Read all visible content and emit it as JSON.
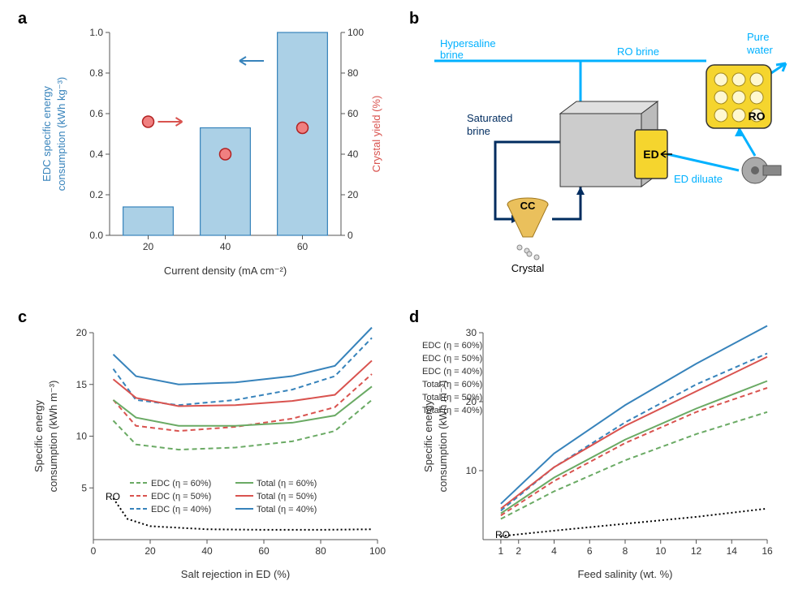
{
  "panel_labels": {
    "a": "a",
    "b": "b",
    "c": "c",
    "d": "d"
  },
  "panelA": {
    "type": "bar+scatter",
    "categories": [
      "20",
      "40",
      "60"
    ],
    "bars": [
      0.14,
      0.53,
      1.0
    ],
    "points": [
      56,
      40,
      53
    ],
    "xlabel": "Current density (mA cm⁻²)",
    "ylabel_left": "EDC specific energy consumption (kWh kg⁻³)",
    "ylabel_right": "Crystal yield (%)",
    "ylim_left": [
      0,
      1.0
    ],
    "ytick_left": [
      0,
      0.2,
      0.4,
      0.6,
      0.8,
      1.0
    ],
    "ylim_right": [
      0,
      100
    ],
    "ytick_right": [
      0,
      20,
      40,
      60,
      80,
      100
    ],
    "bar_color": "#abd0e6",
    "bar_stroke": "#3783bb",
    "point_fill": "#f08080",
    "point_stroke": "#b22222",
    "axis_color": "#555555",
    "left_label_color": "#3783bb",
    "right_label_color": "#d9534f",
    "arrow_left_color": "#3783bb",
    "arrow_right_color": "#d9534f",
    "label_fontsize": 13,
    "tick_fontsize": 12
  },
  "panelB": {
    "type": "flow-diagram",
    "labels": {
      "hypersaline": "Hypersaline brine",
      "ro_brine": "RO brine",
      "pure_water": "Pure water",
      "ed_diluate": "ED diluate",
      "saturated": "Saturated brine",
      "crystal": "Crystal",
      "CC": "CC",
      "ED": "ED",
      "RO": "RO"
    },
    "colors": {
      "blue_light": "#00b1ff",
      "blue_dark": "#002c5f",
      "ed_box_fill": "#f5d52e",
      "ed_box_stroke": "#333333",
      "cube_fill": "#cccccc",
      "cube_stroke": "#333333",
      "cc_fill": "#eac05c",
      "cc_stroke": "#a07820",
      "ro_fill": "#f5d52e",
      "ro_stroke": "#333333",
      "pump_fill": "#aaaaaa",
      "text": "#000000",
      "light_text": "#00b1ff",
      "dark_text": "#002c5f"
    },
    "label_fontsize": 13
  },
  "panelC": {
    "type": "line",
    "xlabel": "Salt rejection in ED (%)",
    "ylabel": "Specific energy consumption (kWh m⁻³)",
    "xlim": [
      0,
      100
    ],
    "xtick": [
      0,
      20,
      40,
      60,
      80,
      100
    ],
    "ylim": [
      0,
      20
    ],
    "ytick": [
      5,
      10,
      15,
      20
    ],
    "axis_color": "#555555",
    "legend": [
      {
        "label": "EDC (η = 60%)",
        "color": "#6aaa64",
        "dash": true
      },
      {
        "label": "EDC (η = 50%)",
        "color": "#d9534f",
        "dash": true
      },
      {
        "label": "EDC (η = 40%)",
        "color": "#3783bb",
        "dash": true
      },
      {
        "label": "Total (η = 60%)",
        "color": "#6aaa64",
        "dash": false
      },
      {
        "label": "Total (η = 50%)",
        "color": "#d9534f",
        "dash": false
      },
      {
        "label": "Total (η = 40%)",
        "color": "#3783bb",
        "dash": false
      }
    ],
    "ro_label": "RO",
    "series": {
      "edc60": {
        "color": "#6aaa64",
        "dash": true,
        "pts": [
          [
            7,
            11.5
          ],
          [
            15,
            9.2
          ],
          [
            30,
            8.7
          ],
          [
            50,
            8.9
          ],
          [
            70,
            9.5
          ],
          [
            85,
            10.5
          ],
          [
            98,
            13.5
          ]
        ]
      },
      "edc50": {
        "color": "#d9534f",
        "dash": true,
        "pts": [
          [
            7,
            13.5
          ],
          [
            15,
            11.0
          ],
          [
            30,
            10.5
          ],
          [
            50,
            10.9
          ],
          [
            70,
            11.7
          ],
          [
            85,
            12.8
          ],
          [
            98,
            16.0
          ]
        ]
      },
      "edc40": {
        "color": "#3783bb",
        "dash": true,
        "pts": [
          [
            7,
            16.5
          ],
          [
            15,
            13.5
          ],
          [
            30,
            13.0
          ],
          [
            50,
            13.5
          ],
          [
            70,
            14.5
          ],
          [
            85,
            15.8
          ],
          [
            98,
            19.5
          ]
        ]
      },
      "tot60": {
        "color": "#6aaa64",
        "dash": false,
        "pts": [
          [
            7,
            13.5
          ],
          [
            15,
            11.8
          ],
          [
            30,
            11.0
          ],
          [
            50,
            11.0
          ],
          [
            70,
            11.3
          ],
          [
            85,
            12.0
          ],
          [
            98,
            14.8
          ]
        ]
      },
      "tot50": {
        "color": "#d9534f",
        "dash": false,
        "pts": [
          [
            7,
            15.5
          ],
          [
            15,
            13.7
          ],
          [
            30,
            12.9
          ],
          [
            50,
            13.0
          ],
          [
            70,
            13.4
          ],
          [
            85,
            14.0
          ],
          [
            98,
            17.3
          ]
        ]
      },
      "tot40": {
        "color": "#3783bb",
        "dash": false,
        "pts": [
          [
            7,
            17.9
          ],
          [
            15,
            15.8
          ],
          [
            30,
            15.0
          ],
          [
            50,
            15.2
          ],
          [
            70,
            15.8
          ],
          [
            85,
            16.8
          ],
          [
            98,
            20.5
          ]
        ]
      },
      "ro": {
        "color": "#000000",
        "dot": true,
        "pts": [
          [
            7,
            4.0
          ],
          [
            12,
            2.0
          ],
          [
            20,
            1.3
          ],
          [
            40,
            1.0
          ],
          [
            60,
            0.95
          ],
          [
            80,
            0.95
          ],
          [
            98,
            1.0
          ]
        ]
      }
    },
    "label_fontsize": 13,
    "tick_fontsize": 12,
    "legend_fontsize": 11
  },
  "panelD": {
    "type": "line",
    "xlabel": "Feed salinity (wt. %)",
    "ylabel": "Specific energy consumption (kWh m⁻³)",
    "xlim": [
      0,
      16
    ],
    "xtick": [
      1,
      2,
      4,
      6,
      8,
      10,
      12,
      14,
      16
    ],
    "ylim": [
      0,
      30
    ],
    "ytick": [
      10,
      20,
      30
    ],
    "axis_color": "#555555",
    "legend": [
      {
        "label": "EDC (η = 60%)",
        "color": "#6aaa64",
        "dash": true
      },
      {
        "label": "EDC (η = 50%)",
        "color": "#d9534f",
        "dash": true
      },
      {
        "label": "EDC (η = 40%)",
        "color": "#3783bb",
        "dash": true
      },
      {
        "label": "Total (η = 60%)",
        "color": "#6aaa64",
        "dash": false
      },
      {
        "label": "Total (η = 50%)",
        "color": "#d9534f",
        "dash": false
      },
      {
        "label": "Total (η = 40%)",
        "color": "#3783bb",
        "dash": false
      }
    ],
    "ro_label": "RO",
    "series": {
      "edc60": {
        "color": "#6aaa64",
        "dash": true,
        "pts": [
          [
            1,
            3.0
          ],
          [
            4,
            7.0
          ],
          [
            8,
            11.5
          ],
          [
            12,
            15.3
          ],
          [
            16,
            18.5
          ]
        ]
      },
      "edc50": {
        "color": "#d9534f",
        "dash": true,
        "pts": [
          [
            1,
            3.5
          ],
          [
            4,
            8.5
          ],
          [
            8,
            14.0
          ],
          [
            12,
            18.5
          ],
          [
            16,
            22.0
          ]
        ]
      },
      "edc40": {
        "color": "#3783bb",
        "dash": true,
        "pts": [
          [
            1,
            4.2
          ],
          [
            4,
            10.5
          ],
          [
            8,
            17.0
          ],
          [
            12,
            22.5
          ],
          [
            16,
            27.0
          ]
        ]
      },
      "tot60": {
        "color": "#6aaa64",
        "dash": false,
        "pts": [
          [
            1,
            3.8
          ],
          [
            4,
            9.0
          ],
          [
            8,
            14.5
          ],
          [
            12,
            19.0
          ],
          [
            16,
            23.0
          ]
        ]
      },
      "tot50": {
        "color": "#d9534f",
        "dash": false,
        "pts": [
          [
            1,
            4.5
          ],
          [
            4,
            10.5
          ],
          [
            8,
            16.5
          ],
          [
            12,
            21.5
          ],
          [
            16,
            26.5
          ]
        ]
      },
      "tot40": {
        "color": "#3783bb",
        "dash": false,
        "pts": [
          [
            1,
            5.2
          ],
          [
            4,
            12.5
          ],
          [
            8,
            19.5
          ],
          [
            12,
            25.5
          ],
          [
            16,
            31.0
          ]
        ]
      },
      "ro": {
        "color": "#000000",
        "dot": true,
        "pts": [
          [
            1,
            0.5
          ],
          [
            4,
            1.3
          ],
          [
            8,
            2.3
          ],
          [
            12,
            3.3
          ],
          [
            16,
            4.5
          ]
        ]
      }
    },
    "label_fontsize": 13,
    "tick_fontsize": 12,
    "legend_fontsize": 11
  }
}
